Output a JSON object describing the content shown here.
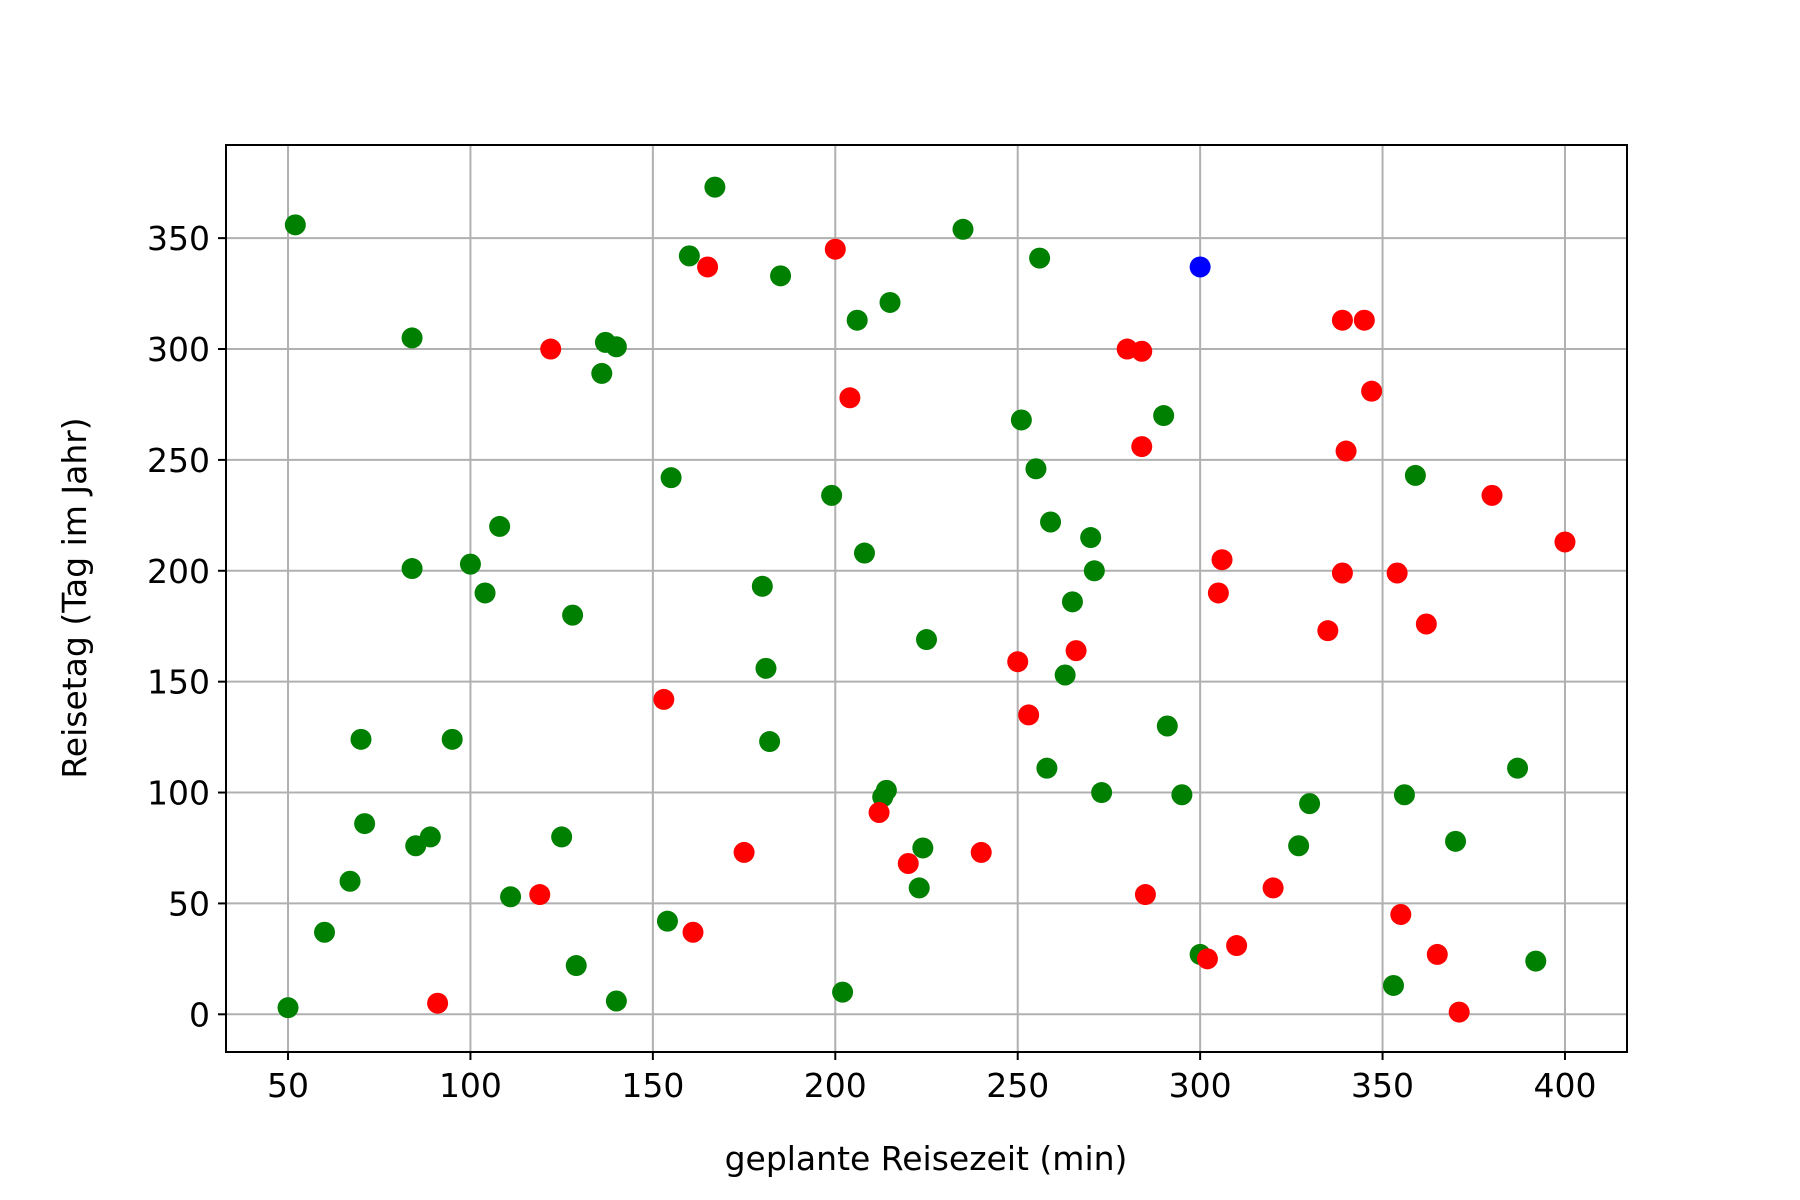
{
  "chart_data": {
    "type": "scatter",
    "title": "",
    "xlabel": "geplante Reisezeit (min)",
    "ylabel": "Reisetag (Tag im Jahr)",
    "xlim": [
      33,
      417
    ],
    "ylim": [
      -17,
      392
    ],
    "xticks": [
      50,
      100,
      150,
      200,
      250,
      300,
      350,
      400
    ],
    "yticks": [
      0,
      50,
      100,
      150,
      200,
      250,
      300,
      350
    ],
    "grid": true,
    "colors": {
      "green": "#008000",
      "red": "#ff0000",
      "blue": "#0000ff"
    },
    "series": [
      {
        "color": "green",
        "points": [
          [
            52,
            356
          ],
          [
            84,
            305
          ],
          [
            84,
            201
          ],
          [
            100,
            203
          ],
          [
            104,
            190
          ],
          [
            108,
            220
          ],
          [
            137,
            303
          ],
          [
            140,
            301
          ],
          [
            136,
            289
          ],
          [
            155,
            242
          ],
          [
            160,
            342
          ],
          [
            167,
            373
          ],
          [
            185,
            333
          ],
          [
            180,
            193
          ],
          [
            181,
            156
          ],
          [
            182,
            123
          ],
          [
            199,
            234
          ],
          [
            206,
            313
          ],
          [
            208,
            208
          ],
          [
            215,
            321
          ],
          [
            235,
            354
          ],
          [
            256,
            341
          ],
          [
            251,
            268
          ],
          [
            255,
            246
          ],
          [
            259,
            222
          ],
          [
            270,
            215
          ],
          [
            271,
            200
          ],
          [
            265,
            186
          ],
          [
            263,
            153
          ],
          [
            290,
            270
          ],
          [
            291,
            130
          ],
          [
            258,
            111
          ],
          [
            273,
            100
          ],
          [
            295,
            99
          ],
          [
            225,
            169
          ],
          [
            214,
            101
          ],
          [
            213,
            98
          ],
          [
            224,
            75
          ],
          [
            223,
            57
          ],
          [
            202,
            10
          ],
          [
            70,
            124
          ],
          [
            95,
            124
          ],
          [
            71,
            86
          ],
          [
            85,
            76
          ],
          [
            89,
            80
          ],
          [
            67,
            60
          ],
          [
            60,
            37
          ],
          [
            50,
            3
          ],
          [
            111,
            53
          ],
          [
            125,
            80
          ],
          [
            129,
            22
          ],
          [
            140,
            6
          ],
          [
            154,
            42
          ],
          [
            128,
            180
          ],
          [
            300,
            27
          ],
          [
            327,
            76
          ],
          [
            330,
            95
          ],
          [
            356,
            99
          ],
          [
            359,
            243
          ],
          [
            370,
            78
          ],
          [
            387,
            111
          ],
          [
            392,
            24
          ],
          [
            353,
            13
          ]
        ]
      },
      {
        "color": "red",
        "points": [
          [
            122,
            300
          ],
          [
            165,
            337
          ],
          [
            200,
            345
          ],
          [
            204,
            278
          ],
          [
            153,
            142
          ],
          [
            175,
            73
          ],
          [
            119,
            54
          ],
          [
            91,
            5
          ],
          [
            161,
            37
          ],
          [
            212,
            91
          ],
          [
            220,
            68
          ],
          [
            240,
            73
          ],
          [
            250,
            159
          ],
          [
            253,
            135
          ],
          [
            266,
            164
          ],
          [
            280,
            300
          ],
          [
            284,
            299
          ],
          [
            284,
            256
          ],
          [
            285,
            54
          ],
          [
            302,
            25
          ],
          [
            310,
            31
          ],
          [
            305,
            190
          ],
          [
            306,
            205
          ],
          [
            320,
            57
          ],
          [
            335,
            173
          ],
          [
            339,
            199
          ],
          [
            339,
            313
          ],
          [
            340,
            254
          ],
          [
            345,
            313
          ],
          [
            347,
            281
          ],
          [
            354,
            199
          ],
          [
            355,
            45
          ],
          [
            362,
            176
          ],
          [
            365,
            27
          ],
          [
            371,
            1
          ],
          [
            380,
            234
          ],
          [
            400,
            213
          ]
        ]
      },
      {
        "color": "blue",
        "points": [
          [
            300,
            337
          ]
        ]
      }
    ]
  }
}
